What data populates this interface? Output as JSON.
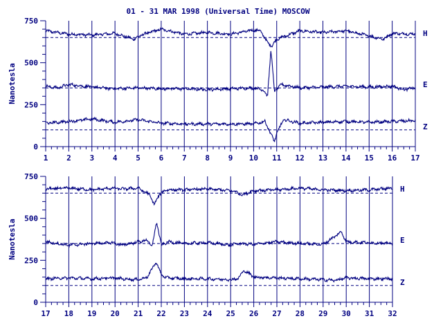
{
  "chart_data": {
    "title": "01 - 31 MAR 1998 (Universal Time) MOSCOW",
    "colors": {
      "trace": "#000080",
      "axis": "#000080",
      "background": "#ffffff"
    },
    "panels": [
      {
        "type": "line",
        "ylabel": "Nanotesla",
        "ylim": [
          0,
          750
        ],
        "yticks": [
          0,
          250,
          500,
          750
        ],
        "xlim": [
          1,
          17
        ],
        "xticks": [
          1,
          2,
          3,
          4,
          5,
          6,
          7,
          8,
          9,
          10,
          11,
          12,
          13,
          14,
          15,
          16,
          17
        ],
        "gridlines": "vertical at each day",
        "series": [
          {
            "name": "H",
            "baseline": 650,
            "x": [
              1,
              2,
              3,
              4,
              4.8,
              5.2,
              6,
              7,
              8,
              9,
              10,
              10.3,
              10.6,
              10.8,
              11,
              12,
              13,
              14,
              15,
              15.6,
              16,
              17
            ],
            "y": [
              690,
              670,
              665,
              675,
              640,
              668,
              700,
              670,
              680,
              670,
              695,
              690,
              620,
              600,
              640,
              690,
              680,
              690,
              660,
              640,
              675,
              670
            ]
          },
          {
            "name": "E",
            "baseline": 350,
            "x": [
              1,
              1.5,
              2,
              3,
              4,
              5,
              6,
              7,
              8,
              9,
              10,
              10.4,
              10.6,
              10.75,
              10.9,
              11.2,
              12,
              13,
              14,
              15,
              16,
              16.5,
              17
            ],
            "y": [
              360,
              350,
              370,
              355,
              345,
              350,
              345,
              345,
              340,
              345,
              350,
              340,
              300,
              580,
              330,
              370,
              350,
              355,
              360,
              355,
              360,
              340,
              350
            ]
          },
          {
            "name": "Z",
            "baseline": 100,
            "x": [
              1,
              2,
              3,
              4,
              5,
              6,
              7,
              8,
              9,
              10,
              10.5,
              10.8,
              10.9,
              11,
              11.3,
              12,
              13,
              14,
              15,
              16,
              17
            ],
            "y": [
              140,
              150,
              165,
              145,
              160,
              140,
              135,
              135,
              135,
              135,
              150,
              60,
              30,
              80,
              160,
              140,
              145,
              150,
              145,
              150,
              155
            ]
          }
        ]
      },
      {
        "type": "line",
        "ylabel": "Nanotesla",
        "ylim": [
          0,
          750
        ],
        "yticks": [
          0,
          250,
          500,
          750
        ],
        "xlim": [
          17,
          32
        ],
        "xticks": [
          17,
          18,
          19,
          20,
          21,
          22,
          23,
          24,
          25,
          26,
          27,
          28,
          29,
          30,
          31,
          32
        ],
        "gridlines": "vertical at each day",
        "series": [
          {
            "name": "H",
            "baseline": 650,
            "x": [
              17,
              18,
              19,
              19.9,
              20.3,
              21,
              21.5,
              21.7,
              21.9,
              22.2,
              23,
              24,
              25,
              25.2,
              25.5,
              26,
              27,
              28,
              29,
              30,
              31,
              32
            ],
            "y": [
              675,
              680,
              670,
              680,
              675,
              680,
              640,
              580,
              640,
              670,
              670,
              675,
              665,
              660,
              640,
              665,
              670,
              680,
              670,
              665,
              670,
              680
            ]
          },
          {
            "name": "E",
            "baseline": 350,
            "x": [
              17,
              18,
              19,
              19.9,
              20.3,
              21,
              21.4,
              21.6,
              21.8,
              22,
              22.3,
              23,
              24,
              25,
              25.3,
              26,
              27,
              28,
              29,
              29.8,
              30,
              31,
              32
            ],
            "y": [
              360,
              340,
              350,
              355,
              340,
              360,
              370,
              330,
              480,
              340,
              360,
              350,
              355,
              340,
              350,
              345,
              360,
              350,
              345,
              420,
              360,
              355,
              350
            ]
          },
          {
            "name": "Z",
            "baseline": 100,
            "x": [
              17,
              18,
              19,
              19.9,
              20.3,
              21,
              21.4,
              21.6,
              21.8,
              22,
              22.3,
              23,
              24,
              25,
              25.3,
              25.6,
              26,
              27,
              28,
              29,
              29.5,
              30,
              31,
              32
            ],
            "y": [
              140,
              145,
              140,
              145,
              140,
              135,
              150,
              200,
              240,
              160,
              145,
              140,
              140,
              135,
              140,
              190,
              150,
              145,
              140,
              135,
              130,
              145,
              140,
              140
            ]
          }
        ]
      }
    ]
  }
}
